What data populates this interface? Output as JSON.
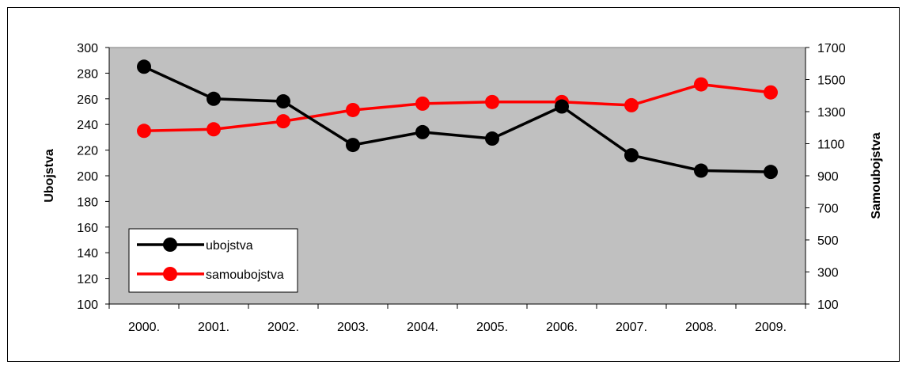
{
  "chart_data": {
    "type": "line",
    "categories": [
      "2000.",
      "2001.",
      "2002.",
      "2003.",
      "2004.",
      "2005.",
      "2006.",
      "2007.",
      "2008.",
      "2009."
    ],
    "series": [
      {
        "name": "ubojstva",
        "axis": "left",
        "color": "#000000",
        "values": [
          285,
          260,
          258,
          224,
          234,
          229,
          254,
          216,
          204,
          203
        ]
      },
      {
        "name": "samoubojstva",
        "axis": "right",
        "color": "#ff0000",
        "values": [
          1180,
          1190,
          1240,
          1310,
          1350,
          1360,
          1360,
          1340,
          1470,
          1420
        ]
      }
    ],
    "ylabel": "Ubojstva",
    "y2label": "Samoubojstva",
    "ylim": [
      100,
      300
    ],
    "y2lim": [
      100,
      1700
    ],
    "yticks": [
      "100",
      "120",
      "140",
      "160",
      "180",
      "200",
      "220",
      "240",
      "260",
      "280",
      "300"
    ],
    "y2ticks": [
      "100",
      "300",
      "500",
      "700",
      "900",
      "1100",
      "1300",
      "1500",
      "1700"
    ],
    "plot_background": "#c0c0c0",
    "grid": false,
    "legend_position": "bottom-left"
  }
}
